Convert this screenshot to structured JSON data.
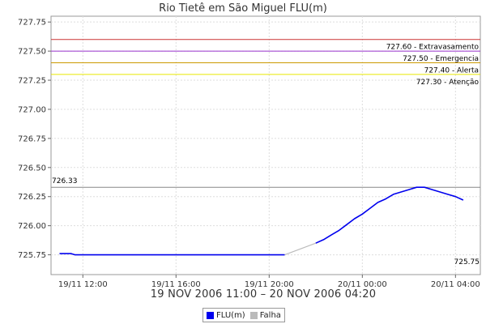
{
  "chart_data": {
    "type": "line",
    "title": "Rio Tietê em São Miguel FLU(m)",
    "subtitle": "19 NOV 2006 11:00 – 20 NOV 2006 04:20",
    "xlabel": "",
    "ylabel": "",
    "ylim": [
      725.58,
      727.8
    ],
    "yticks": [
      "725.75",
      "726.00",
      "726.25",
      "726.50",
      "726.75",
      "727.00",
      "727.25",
      "727.50",
      "727.75"
    ],
    "x_range": [
      "2006-11-19 10:38",
      "2006-11-20 05:04"
    ],
    "xticks": [
      {
        "t": "2006-11-19 12:00",
        "label": "19/11 12:00"
      },
      {
        "t": "2006-11-19 16:00",
        "label": "19/11 16:00"
      },
      {
        "t": "2006-11-19 20:00",
        "label": "19/11 20:00"
      },
      {
        "t": "2006-11-20 00:00",
        "label": "20/11 00:00"
      },
      {
        "t": "2006-11-20 04:00",
        "label": "20/11 04:00"
      }
    ],
    "grid": true,
    "legend_position": "bottom",
    "thresholds": [
      {
        "value": 727.6,
        "label": "727.60 - Extravasamento",
        "color": "#cc3333"
      },
      {
        "value": 727.5,
        "label": "727.50 - Emergencia",
        "color": "#9933cc"
      },
      {
        "value": 727.4,
        "label": "727.40 - Alerta",
        "color": "#cc9900"
      },
      {
        "value": 727.3,
        "label": "727.30 - Atenção",
        "color": "#e6e600"
      }
    ],
    "max_line": {
      "value": 726.33,
      "label": "726.33",
      "color": "#888888"
    },
    "min_label": "725.75",
    "series": [
      {
        "name": "FLU(m)",
        "color": "#0000ee",
        "points": [
          [
            "2006-11-19 11:00",
            725.76
          ],
          [
            "2006-11-19 11:30",
            725.76
          ],
          [
            "2006-11-19 11:40",
            725.75
          ],
          [
            "2006-11-19 14:00",
            725.75
          ],
          [
            "2006-11-19 17:00",
            725.75
          ],
          [
            "2006-11-19 20:40",
            725.75
          ]
        ]
      },
      {
        "name": "Falha",
        "color": "#bbbbbb",
        "points": [
          [
            "2006-11-19 20:40",
            725.75
          ],
          [
            "2006-11-19 22:00",
            725.85
          ]
        ]
      },
      {
        "name": "FLU(m)",
        "color": "#0000ee",
        "points": [
          [
            "2006-11-19 22:00",
            725.85
          ],
          [
            "2006-11-19 22:20",
            725.88
          ],
          [
            "2006-11-19 22:40",
            725.92
          ],
          [
            "2006-11-19 23:00",
            725.96
          ],
          [
            "2006-11-19 23:20",
            726.01
          ],
          [
            "2006-11-19 23:40",
            726.06
          ],
          [
            "2006-11-20 00:00",
            726.1
          ],
          [
            "2006-11-20 00:20",
            726.15
          ],
          [
            "2006-11-20 00:40",
            726.2
          ],
          [
            "2006-11-20 01:00",
            726.23
          ],
          [
            "2006-11-20 01:20",
            726.27
          ],
          [
            "2006-11-20 01:40",
            726.29
          ],
          [
            "2006-11-20 02:00",
            726.31
          ],
          [
            "2006-11-20 02:20",
            726.33
          ],
          [
            "2006-11-20 02:40",
            726.33
          ],
          [
            "2006-11-20 03:00",
            726.31
          ],
          [
            "2006-11-20 03:20",
            726.29
          ],
          [
            "2006-11-20 03:40",
            726.27
          ],
          [
            "2006-11-20 04:00",
            726.25
          ],
          [
            "2006-11-20 04:20",
            726.22
          ]
        ]
      }
    ]
  },
  "legend": {
    "items": [
      {
        "label": "FLU(m)",
        "color": "#0000ee"
      },
      {
        "label": "Falha",
        "color": "#bbbbbb"
      }
    ]
  }
}
